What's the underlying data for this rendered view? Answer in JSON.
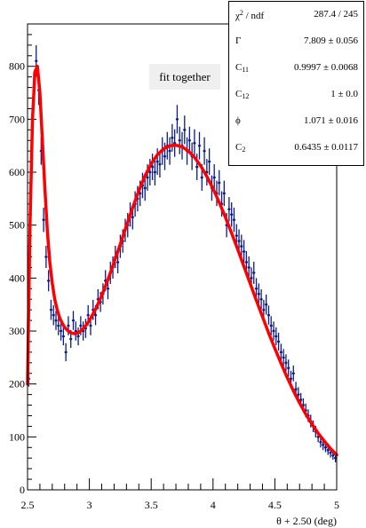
{
  "chart_data": {
    "type": "scatter",
    "title": "fit together",
    "xlabel": "θ + 2.50 (deg)",
    "ylabel": "",
    "xlim": [
      2.5,
      5.0
    ],
    "ylim": [
      0,
      880
    ],
    "x_ticks": [
      "2.5",
      "3",
      "3.5",
      "4",
      "4.5",
      "5"
    ],
    "y_ticks": [
      "0",
      "100",
      "200",
      "300",
      "400",
      "500",
      "600",
      "700",
      "800"
    ],
    "grid": false,
    "series": [
      {
        "kind": "points-with-errors",
        "color": "#0b1c8a",
        "x": [
          2.51,
          2.53,
          2.55,
          2.57,
          2.59,
          2.61,
          2.63,
          2.65,
          2.67,
          2.69,
          2.71,
          2.73,
          2.75,
          2.77,
          2.79,
          2.81,
          2.83,
          2.85,
          2.87,
          2.89,
          2.91,
          2.93,
          2.95,
          2.97,
          2.99,
          3.01,
          3.03,
          3.05,
          3.07,
          3.09,
          3.11,
          3.13,
          3.15,
          3.17,
          3.19,
          3.21,
          3.23,
          3.25,
          3.27,
          3.29,
          3.31,
          3.33,
          3.35,
          3.37,
          3.39,
          3.41,
          3.43,
          3.45,
          3.47,
          3.49,
          3.51,
          3.53,
          3.55,
          3.57,
          3.59,
          3.61,
          3.63,
          3.65,
          3.67,
          3.69,
          3.71,
          3.73,
          3.75,
          3.77,
          3.79,
          3.81,
          3.83,
          3.85,
          3.87,
          3.89,
          3.91,
          3.93,
          3.95,
          3.97,
          3.99,
          4.01,
          4.03,
          4.05,
          4.07,
          4.09,
          4.11,
          4.13,
          4.15,
          4.17,
          4.19,
          4.21,
          4.23,
          4.25,
          4.27,
          4.29,
          4.31,
          4.33,
          4.35,
          4.37,
          4.39,
          4.41,
          4.43,
          4.45,
          4.47,
          4.49,
          4.51,
          4.53,
          4.55,
          4.57,
          4.59,
          4.61,
          4.63,
          4.65,
          4.67,
          4.69,
          4.71,
          4.73,
          4.75,
          4.77,
          4.79,
          4.81,
          4.83,
          4.85,
          4.87,
          4.89,
          4.91,
          4.93,
          4.95,
          4.97,
          4.99
        ],
        "y": [
          210,
          620,
          760,
          810,
          755,
          640,
          510,
          440,
          395,
          340,
          330,
          320,
          310,
          300,
          290,
          260,
          310,
          285,
          320,
          300,
          290,
          310,
          300,
          305,
          330,
          310,
          340,
          330,
          360,
          355,
          370,
          395,
          380,
          410,
          420,
          440,
          430,
          460,
          470,
          490,
          500,
          520,
          515,
          540,
          550,
          560,
          575,
          570,
          590,
          600,
          610,
          600,
          620,
          615,
          640,
          630,
          650,
          640,
          665,
          655,
          700,
          660,
          650,
          680,
          640,
          660,
          630,
          655,
          610,
          650,
          590,
          640,
          600,
          620,
          570,
          590,
          560,
          580,
          540,
          560,
          500,
          530,
          520,
          510,
          480,
          470,
          460,
          450,
          430,
          420,
          400,
          410,
          380,
          370,
          360,
          340,
          350,
          330,
          310,
          300,
          290,
          280,
          260,
          250,
          240,
          230,
          210,
          220,
          190,
          180,
          170,
          160,
          150,
          140,
          130,
          120,
          110,
          100,
          90,
          85,
          80,
          75,
          70,
          65,
          60
        ],
        "err": [
          15,
          25,
          28,
          30,
          28,
          26,
          23,
          21,
          20,
          19,
          19,
          18,
          18,
          18,
          17,
          17,
          18,
          17,
          18,
          18,
          17,
          18,
          18,
          18,
          19,
          18,
          19,
          19,
          19,
          19,
          20,
          20,
          20,
          21,
          21,
          21,
          21,
          22,
          22,
          22,
          23,
          23,
          23,
          24,
          24,
          24,
          24,
          24,
          25,
          25,
          25,
          25,
          25,
          25,
          26,
          26,
          26,
          26,
          26,
          26,
          27,
          26,
          26,
          27,
          26,
          26,
          26,
          26,
          25,
          26,
          25,
          26,
          25,
          25,
          24,
          25,
          24,
          24,
          24,
          24,
          23,
          23,
          23,
          23,
          22,
          22,
          22,
          22,
          21,
          21,
          20,
          21,
          20,
          20,
          19,
          19,
          19,
          18,
          18,
          18,
          17,
          17,
          16,
          16,
          16,
          16,
          15,
          15,
          14,
          14,
          13,
          13,
          13,
          12,
          12,
          11,
          11,
          10,
          10,
          10,
          9,
          9,
          9,
          8,
          8
        ]
      },
      {
        "kind": "fit-curve",
        "color": "#ff0000",
        "x": [
          2.5,
          2.52,
          2.54,
          2.56,
          2.58,
          2.6,
          2.62,
          2.64,
          2.66,
          2.68,
          2.7,
          2.72,
          2.74,
          2.76,
          2.78,
          2.8,
          2.82,
          2.84,
          2.86,
          2.88,
          2.9,
          2.92,
          2.94,
          2.96,
          2.98,
          3.0,
          3.05,
          3.1,
          3.15,
          3.2,
          3.25,
          3.3,
          3.35,
          3.4,
          3.45,
          3.5,
          3.55,
          3.6,
          3.65,
          3.7,
          3.75,
          3.8,
          3.85,
          3.9,
          3.95,
          4.0,
          4.05,
          4.1,
          4.15,
          4.2,
          4.25,
          4.3,
          4.35,
          4.4,
          4.45,
          4.5,
          4.55,
          4.6,
          4.65,
          4.7,
          4.75,
          4.8,
          4.85,
          4.9,
          4.95,
          5.0
        ],
        "y": [
          200,
          500,
          700,
          790,
          800,
          750,
          660,
          570,
          490,
          430,
          390,
          360,
          340,
          325,
          315,
          307,
          302,
          298,
          296,
          295,
          296,
          298,
          302,
          307,
          313,
          320,
          341,
          367,
          397,
          430,
          464,
          499,
          533,
          565,
          593,
          616,
          633,
          644,
          650,
          651,
          648,
          640,
          628,
          612,
          592,
          569,
          543,
          515,
          485,
          454,
          422,
          390,
          358,
          327,
          296,
          267,
          239,
          212,
          187,
          164,
          143,
          124,
          107,
          92,
          78,
          66
        ]
      }
    ],
    "stats": [
      {
        "name": "χ² / ndf",
        "value": "287.4 / 245"
      },
      {
        "name": "Γ",
        "value": "7.809 ± 0.056"
      },
      {
        "name": "C₁₁",
        "value": "0.9997 ± 0.0068"
      },
      {
        "name": "C₁₂",
        "value": "1 ± 0.0"
      },
      {
        "name": "ϕ",
        "value": "1.071 ± 0.016"
      },
      {
        "name": "C₂",
        "value": "0.6435 ± 0.0117"
      }
    ]
  }
}
